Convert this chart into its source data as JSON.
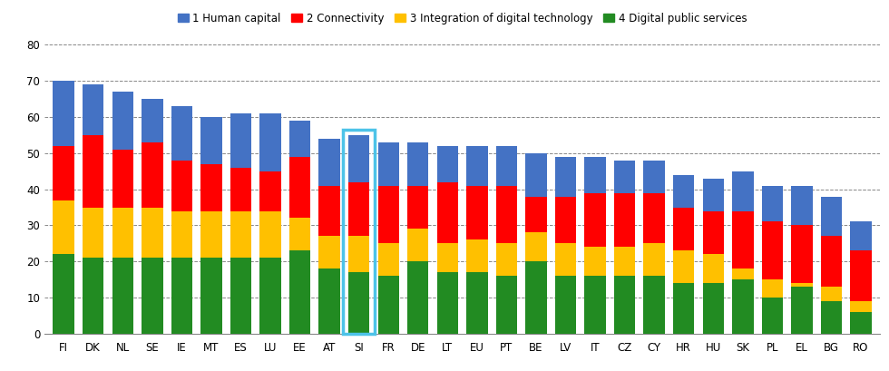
{
  "countries": [
    "FI",
    "DK",
    "NL",
    "SE",
    "IE",
    "MT",
    "ES",
    "LU",
    "EE",
    "AT",
    "SI",
    "FR",
    "DE",
    "LT",
    "EU",
    "PT",
    "BE",
    "LV",
    "IT",
    "CZ",
    "CY",
    "HR",
    "HU",
    "SK",
    "PL",
    "EL",
    "BG",
    "RO"
  ],
  "green": [
    22,
    21,
    21,
    21,
    21,
    21,
    21,
    21,
    23,
    18,
    17,
    16,
    20,
    17,
    17,
    16,
    20,
    16,
    16,
    16,
    16,
    14,
    14,
    15,
    10,
    13,
    9,
    6
  ],
  "yellow": [
    15,
    14,
    14,
    14,
    13,
    13,
    13,
    13,
    9,
    9,
    10,
    9,
    9,
    8,
    9,
    9,
    8,
    9,
    8,
    8,
    9,
    9,
    8,
    3,
    5,
    1,
    4,
    3
  ],
  "red": [
    15,
    20,
    16,
    18,
    14,
    13,
    12,
    11,
    17,
    14,
    15,
    16,
    12,
    17,
    15,
    16,
    10,
    13,
    15,
    15,
    14,
    12,
    12,
    16,
    16,
    16,
    14,
    14
  ],
  "blue": [
    18,
    14,
    16,
    12,
    15,
    13,
    15,
    16,
    10,
    13,
    13,
    12,
    12,
    10,
    11,
    11,
    12,
    11,
    10,
    9,
    9,
    9,
    9,
    11,
    10,
    11,
    11,
    8
  ],
  "highlight_index": 10,
  "colors": {
    "green": "#228B22",
    "yellow": "#FFC000",
    "red": "#FF0000",
    "blue": "#4472C4"
  },
  "legend_labels": [
    "1 Human capital",
    "2 Connectivity",
    "3 Integration of digital technology",
    "4 Digital public services"
  ],
  "ylim": [
    0,
    80
  ],
  "yticks": [
    0,
    10,
    20,
    30,
    40,
    50,
    60,
    70,
    80
  ],
  "highlight_color": "#4DC3E8",
  "background_color": "#FFFFFF"
}
